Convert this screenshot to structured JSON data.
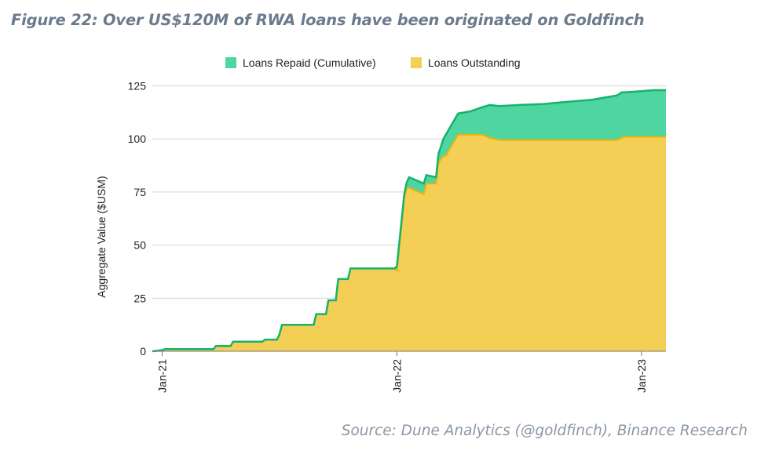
{
  "figure": {
    "title": "Figure 22: Over US$120M of RWA loans have been originated on Goldfinch",
    "source": "Source: Dune Analytics (@goldfinch), Binance Research"
  },
  "colors": {
    "repaid_fill": "#4ed5a0",
    "outstanding_fill": "#f4cf55",
    "repaid_line": "#15b36b",
    "outstanding_line": "#eab30c",
    "grid": "#d4d4d4",
    "axis": "#777777"
  },
  "chart_data": {
    "type": "area",
    "title": "",
    "xlabel": "",
    "ylabel": "Aggregate Value ($USM)",
    "ylim": [
      0,
      130
    ],
    "yticks": [
      0,
      25,
      50,
      75,
      100,
      125
    ],
    "xlim": [
      2021.0,
      2023.1
    ],
    "xticks": [
      {
        "value": 2021.04,
        "label": "Jan-21"
      },
      {
        "value": 2022.0,
        "label": "Jan-22"
      },
      {
        "value": 2023.0,
        "label": "Jan-23"
      }
    ],
    "legend": [
      "Loans Repaid (Cumulative)",
      "Loans Outstanding"
    ],
    "legend_position": "top",
    "x": [
      2021.0,
      2021.04,
      2021.05,
      2021.25,
      2021.26,
      2021.32,
      2021.33,
      2021.45,
      2021.46,
      2021.51,
      2021.52,
      2021.53,
      2021.66,
      2021.67,
      2021.71,
      2021.72,
      2021.75,
      2021.76,
      2021.8,
      2021.81,
      2021.85,
      2021.86,
      2021.99,
      2022.0,
      2022.03,
      2022.04,
      2022.05,
      2022.11,
      2022.12,
      2022.16,
      2022.17,
      2022.19,
      2022.2,
      2022.25,
      2022.3,
      2022.35,
      2022.38,
      2022.42,
      2022.5,
      2022.6,
      2022.7,
      2022.8,
      2022.85,
      2022.9,
      2022.92,
      2022.93,
      2023.0,
      2023.05,
      2023.1
    ],
    "series": [
      {
        "name": "Loans Repaid (Cumulative)",
        "values": [
          0,
          0,
          0,
          0,
          0,
          0,
          0,
          0,
          0,
          0,
          0,
          0,
          0,
          0,
          0,
          0,
          0,
          0,
          0,
          0,
          0,
          0,
          0,
          2,
          2.5,
          2.5,
          5,
          5,
          4,
          3,
          4,
          8,
          10,
          10,
          11,
          13,
          15.5,
          16,
          16.5,
          17,
          18,
          19,
          20,
          21,
          21.5,
          21,
          21.5,
          22,
          22
        ]
      },
      {
        "name": "Loans Outstanding",
        "values": [
          0,
          0.5,
          1,
          1,
          2.5,
          2.5,
          4.5,
          4.5,
          5.5,
          5.5,
          8,
          12.5,
          12.5,
          17.5,
          17.5,
          24,
          24,
          34,
          34,
          39,
          39,
          39,
          39,
          38,
          71.5,
          77,
          77,
          74,
          79,
          79,
          89,
          92,
          92,
          102,
          102,
          102,
          100.5,
          99.5,
          99.5,
          99.5,
          99.5,
          99.5,
          99.5,
          99.5,
          100.5,
          101,
          101,
          101,
          101
        ]
      }
    ]
  }
}
